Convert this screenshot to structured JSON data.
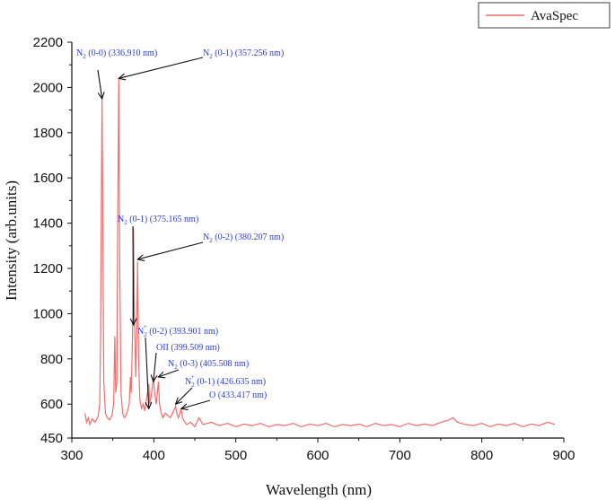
{
  "chart_data": {
    "type": "line",
    "title": "",
    "xlabel": "Wavelength (nm)",
    "ylabel": "Intensity (arb.units)",
    "xlim": [
      300,
      900
    ],
    "ylim": [
      450,
      2200
    ],
    "xticks": [
      300,
      400,
      500,
      600,
      700,
      800,
      900
    ],
    "yticks": [
      450,
      600,
      800,
      1000,
      1200,
      1400,
      1600,
      1800,
      2000,
      2200
    ],
    "grid": false,
    "legend_position": "top-right",
    "series": [
      {
        "name": "AvaSpec",
        "color": "#f26d6d",
        "x": [
          316,
          318,
          320,
          322,
          325,
          328,
          330,
          332,
          334,
          335,
          336,
          336.9,
          338,
          339,
          341,
          343,
          346,
          349,
          351,
          352.5,
          353.5,
          355,
          356,
          357.3,
          358.5,
          360,
          362,
          364,
          366,
          368,
          370,
          371.5,
          372.5,
          374,
          375.2,
          376.5,
          378,
          379,
          380.2,
          381.5,
          383,
          385,
          387,
          389,
          391,
          393.9,
          395,
          397,
          399.5,
          401,
          403,
          405.5,
          407,
          409,
          411,
          414,
          417,
          420,
          423,
          426.6,
          428,
          430,
          433.4,
          435,
          437,
          440,
          445,
          450,
          455,
          460,
          470,
          480,
          490,
          500,
          510,
          520,
          530,
          540,
          550,
          560,
          570,
          580,
          590,
          600,
          610,
          620,
          630,
          640,
          650,
          660,
          670,
          680,
          690,
          700,
          710,
          720,
          730,
          740,
          750,
          760,
          765,
          770,
          780,
          790,
          800,
          810,
          820,
          830,
          840,
          850,
          860,
          870,
          880,
          885,
          889
        ],
        "y": [
          560,
          520,
          540,
          510,
          535,
          520,
          530,
          545,
          600,
          900,
          1500,
          1950,
          1300,
          700,
          560,
          540,
          530,
          550,
          600,
          900,
          650,
          700,
          1400,
          2040,
          1200,
          650,
          560,
          540,
          550,
          570,
          600,
          720,
          650,
          900,
          1380,
          950,
          720,
          900,
          1230,
          800,
          620,
          580,
          600,
          570,
          620,
          690,
          600,
          640,
          720,
          650,
          600,
          700,
          600,
          560,
          540,
          560,
          550,
          540,
          560,
          590,
          560,
          540,
          580,
          540,
          525,
          510,
          520,
          500,
          540,
          510,
          520,
          505,
          515,
          500,
          512,
          505,
          515,
          500,
          510,
          505,
          515,
          500,
          512,
          505,
          515,
          500,
          510,
          505,
          512,
          500,
          515,
          505,
          510,
          500,
          515,
          505,
          512,
          505,
          520,
          530,
          540,
          520,
          510,
          505,
          515,
          500,
          512,
          505,
          515,
          500,
          512,
          505,
          520,
          515,
          510
        ]
      }
    ],
    "annotations": [
      {
        "label": "N",
        "sub": "2",
        "sup": "",
        "text": " (0-0) (336.910 nm)",
        "target": [
          336.9,
          1950
        ]
      },
      {
        "label": "N",
        "sub": "2",
        "sup": "",
        "text": " (0-1) (357.256 nm)",
        "target": [
          357.3,
          2040
        ]
      },
      {
        "label": "N",
        "sub": "2",
        "sup": "",
        "text": " (0-1) (375.165 nm)",
        "target": [
          375.2,
          950
        ]
      },
      {
        "label": "N",
        "sub": "2",
        "sup": "",
        "text": " (0-2) (380.207 nm)",
        "target": [
          380.2,
          1240
        ]
      },
      {
        "label": "N",
        "sub": "2",
        "sup": "+",
        "text": " (0-2) (393.901 nm)",
        "target": [
          393.9,
          580
        ]
      },
      {
        "label": "OII",
        "sub": "",
        "sup": "",
        "text": " (399.509 nm)",
        "target": [
          399.5,
          700
        ]
      },
      {
        "label": "N",
        "sub": "2",
        "sup": "",
        "text": " (0-3) (405.508 nm)",
        "target": [
          405.5,
          720
        ]
      },
      {
        "label": "N",
        "sub": "2",
        "sup": "+",
        "text": " (0-1) (426.635 nm)",
        "target": [
          426.6,
          600
        ]
      },
      {
        "label": "O",
        "sub": "",
        "sup": "",
        "text": " (433.417 nm)",
        "target": [
          433.4,
          580
        ]
      }
    ]
  }
}
